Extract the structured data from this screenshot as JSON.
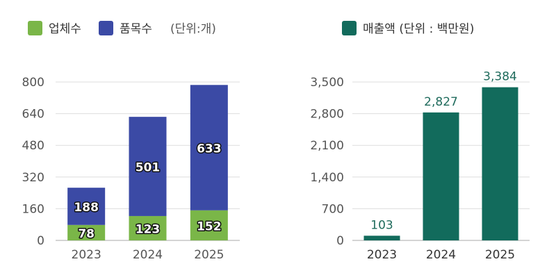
{
  "colors": {
    "companies": "#7ab648",
    "products": "#3b4aa5",
    "sales": "#126b5c",
    "grid": "#dddddd",
    "axis": "#aaaaaa"
  },
  "left_chart": {
    "legend": [
      {
        "label": "업체수",
        "color": "#7ab648"
      },
      {
        "label": "품목수",
        "color": "#3b4aa5"
      }
    ],
    "unit": "(단위:개)"
  },
  "right_chart": {
    "legend": [
      {
        "label": "매출액 (단위 : 백만원)",
        "color": "#126b5c"
      }
    ]
  },
  "chart_data": [
    {
      "type": "bar",
      "stacked": true,
      "categories": [
        "2023",
        "2024",
        "2025"
      ],
      "series": [
        {
          "name": "업체수",
          "values": [
            78,
            123,
            152
          ]
        },
        {
          "name": "품목수",
          "values": [
            188,
            501,
            633
          ]
        }
      ],
      "yticks": [
        "0",
        "160",
        "320",
        "480",
        "640",
        "800"
      ],
      "ylim": [
        0,
        800
      ],
      "unit": "(단위:개)",
      "grid": true,
      "legend_position": "top-left"
    },
    {
      "type": "bar",
      "categories": [
        "2023",
        "2024",
        "2025"
      ],
      "series": [
        {
          "name": "매출액 (단위 : 백만원)",
          "values": [
            103,
            2827,
            3384
          ]
        }
      ],
      "data_labels": [
        "103",
        "2,827",
        "3,384"
      ],
      "yticks": [
        "0",
        "700",
        "1,400",
        "2,100",
        "2,800",
        "3,500"
      ],
      "ylim": [
        0,
        3500
      ],
      "grid": true,
      "legend_position": "top"
    }
  ]
}
